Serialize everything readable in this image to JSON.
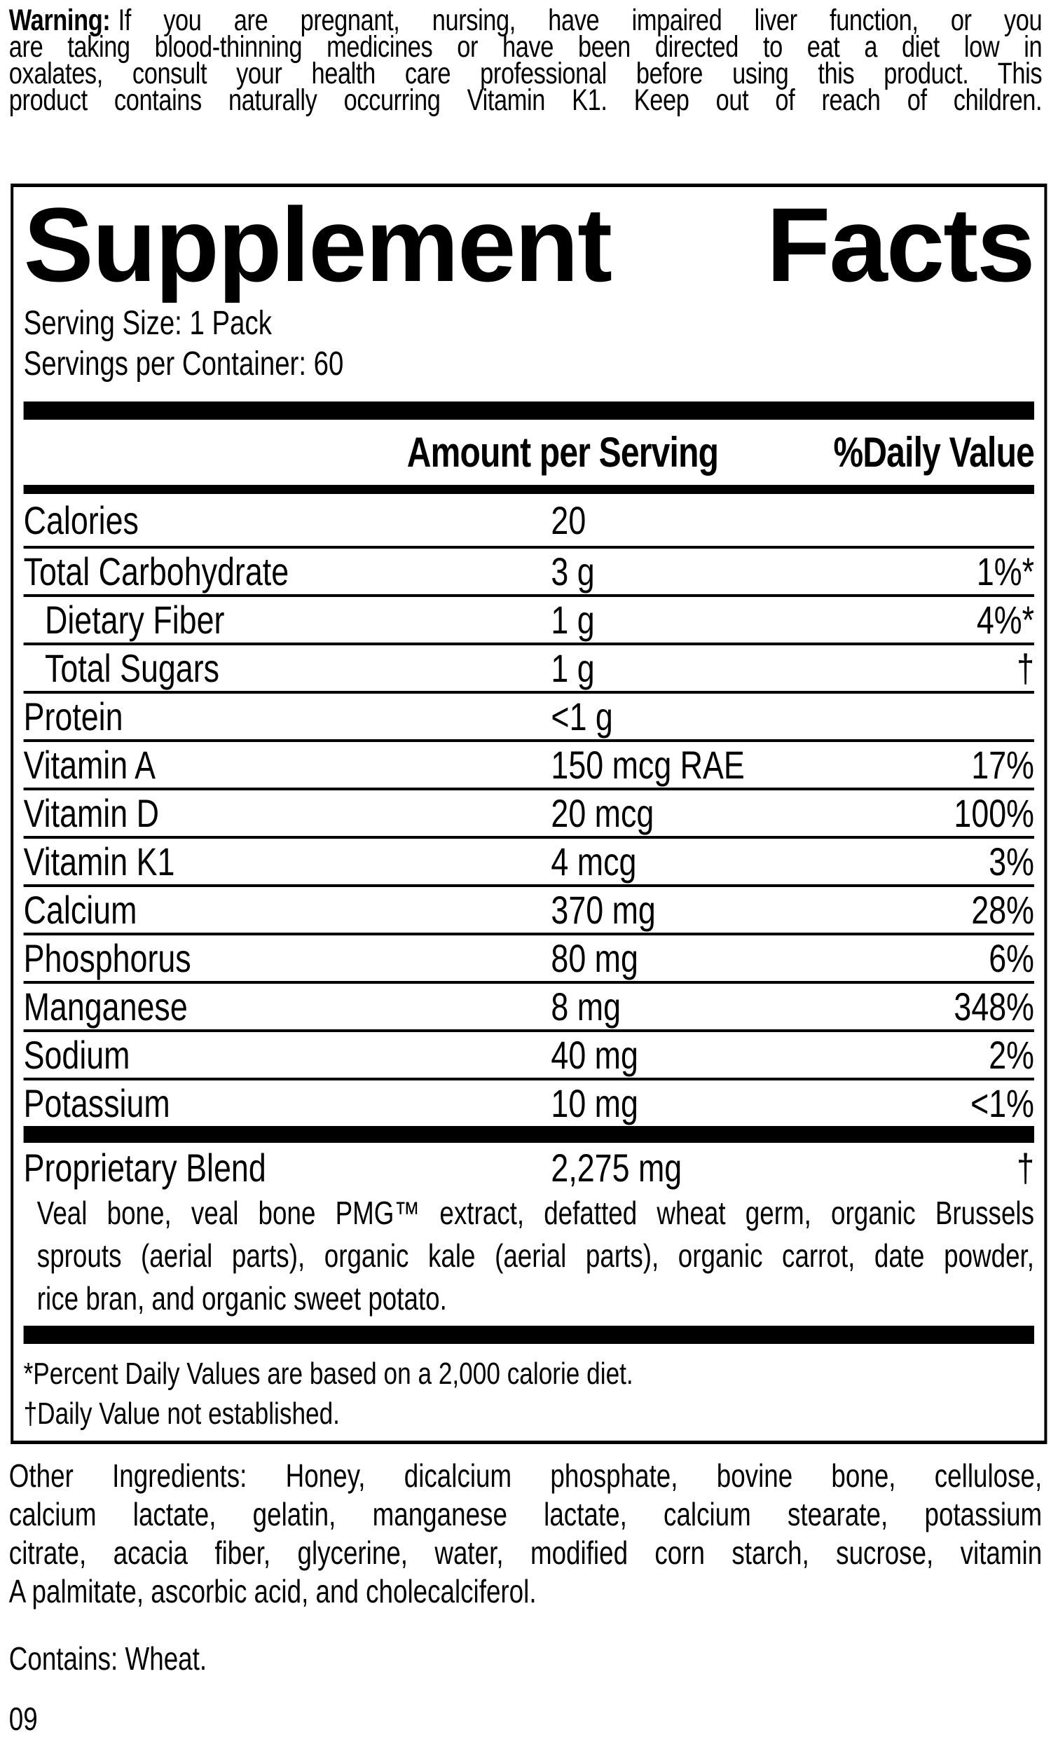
{
  "colors": {
    "ink": "#000000",
    "paper": "#ffffff"
  },
  "warning": {
    "label": "Warning:",
    "lines": [
      "If you are pregnant, nursing, have impaired liver function, or you",
      "are taking blood-thinning medicines or have been directed to eat a diet low in",
      "oxalates, consult your health care professional before using this product. This",
      "product contains naturally occurring Vitamin K1. Keep out of reach of children."
    ]
  },
  "panel": {
    "title_left": "Supplement",
    "title_right": "Facts",
    "serving_size": "Serving Size: 1 Pack",
    "servings_per_container": "Servings per Container: 60",
    "columns": {
      "amount": "Amount per Serving",
      "dv": "%Daily Value"
    },
    "rows": [
      {
        "name": "Calories",
        "amount": "20",
        "dv": "",
        "indent": false
      },
      {
        "name": "Total Carbohydrate",
        "amount": "3 g",
        "dv": "1%*",
        "indent": false
      },
      {
        "name": "Dietary Fiber",
        "amount": "1 g",
        "dv": "4%*",
        "indent": true
      },
      {
        "name": "Total Sugars",
        "amount": "1 g",
        "dv": "†",
        "indent": true
      },
      {
        "name": "Protein",
        "amount": "<1 g",
        "dv": "",
        "indent": false
      },
      {
        "name": "Vitamin A",
        "amount": "150 mcg RAE",
        "dv": "17%",
        "indent": false
      },
      {
        "name": "Vitamin D",
        "amount": "20 mcg",
        "dv": "100%",
        "indent": false
      },
      {
        "name": "Vitamin K1",
        "amount": "4 mcg",
        "dv": "3%",
        "indent": false
      },
      {
        "name": "Calcium",
        "amount": "370 mg",
        "dv": "28%",
        "indent": false
      },
      {
        "name": "Phosphorus",
        "amount": "80 mg",
        "dv": "6%",
        "indent": false
      },
      {
        "name": "Manganese",
        "amount": "8 mg",
        "dv": "348%",
        "indent": false
      },
      {
        "name": "Sodium",
        "amount": "40 mg",
        "dv": "2%",
        "indent": false
      },
      {
        "name": "Potassium",
        "amount": "10 mg",
        "dv": "<1%",
        "indent": false
      }
    ],
    "proprietary": {
      "name": "Proprietary Blend",
      "amount": "2,275 mg",
      "dv": "†"
    },
    "blend_lines": [
      "Veal bone, veal bone PMG™ extract, defatted wheat germ, organic Brussels",
      "sprouts (aerial parts), organic kale (aerial parts), organic carrot, date powder,",
      "rice bran, and organic sweet potato."
    ],
    "footnotes": [
      "*Percent Daily Values are based on a 2,000 calorie diet.",
      "†Daily Value not established."
    ]
  },
  "other_ingredients": {
    "lines": [
      "Other Ingredients: Honey, dicalcium phosphate, bovine bone, cellulose,",
      "calcium lactate, gelatin, manganese lactate, calcium stearate, potassium",
      "citrate, acacia fiber, glycerine, water, modified corn starch, sucrose, vitamin",
      "A palmitate, ascorbic acid, and cholecalciferol."
    ]
  },
  "contains": "Contains: Wheat.",
  "code": "09"
}
